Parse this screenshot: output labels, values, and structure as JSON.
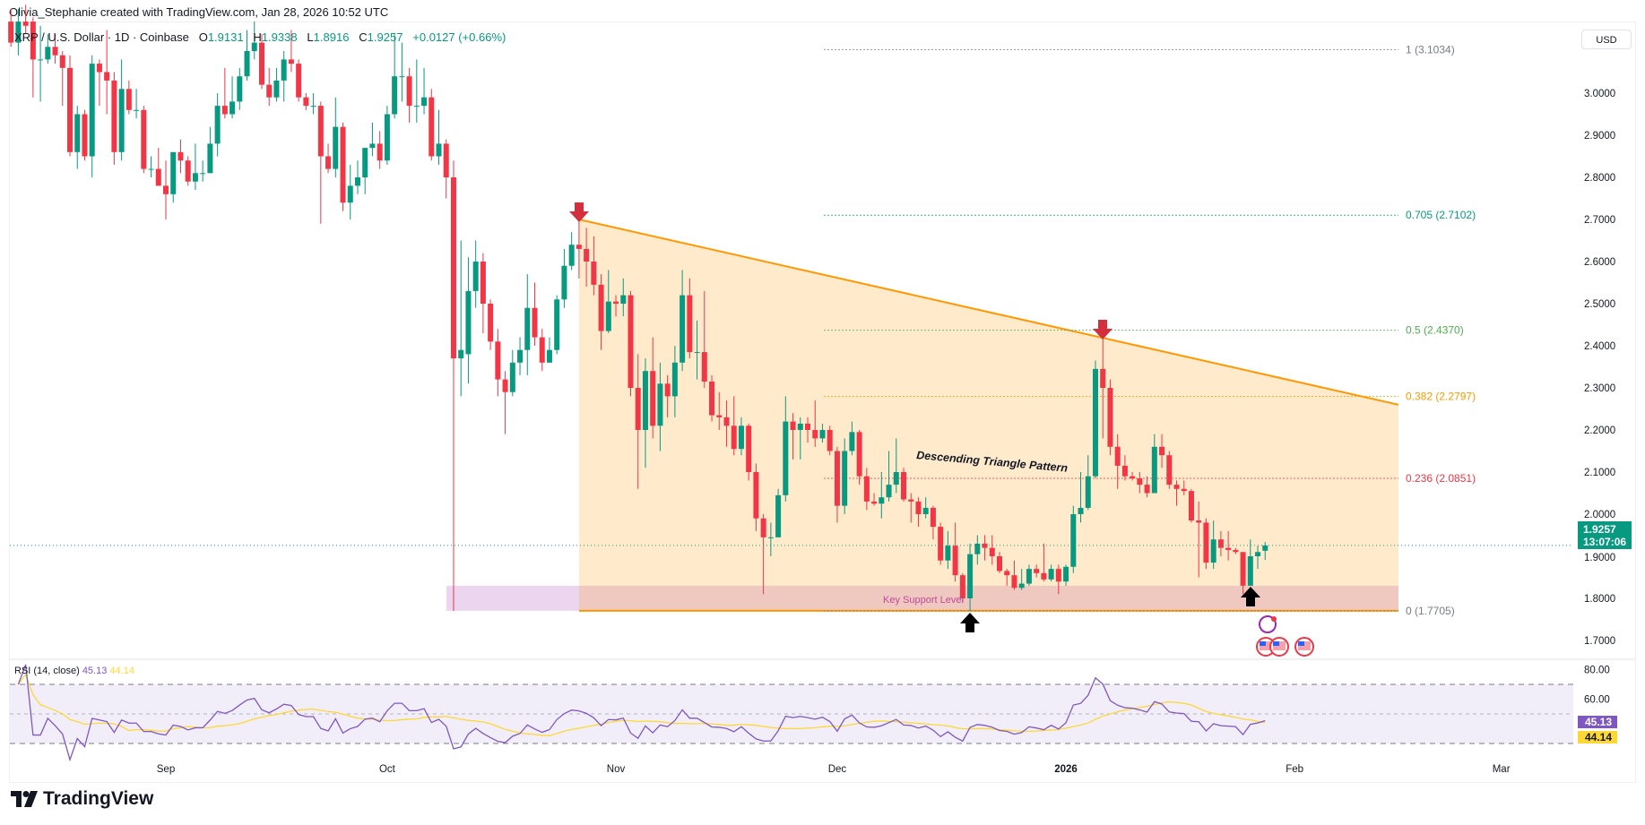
{
  "credit": "Olivia_Stephanie created with TradingView.com, Jan 28, 2026 10:52 UTC",
  "legend": {
    "symbol": "XRP / U.S. Dollar · 1D · Coinbase",
    "open_label": "O",
    "open": "1.9131",
    "high_label": "H",
    "high": "1.9338",
    "low_label": "L",
    "low": "1.8916",
    "close_label": "C",
    "close": "1.9257",
    "change": "+0.0127 (+0.66%)"
  },
  "currency_button": "USD",
  "price_tag": {
    "price": "1.9257",
    "countdown": "13:07:06"
  },
  "rsi": {
    "label": "RSI (14, close)",
    "value": "45.13",
    "ma_value": "44.14",
    "axis_labels": [
      "80.00",
      "60.00"
    ],
    "levels": [
      70,
      50,
      30
    ]
  },
  "colors": {
    "up": "#089981",
    "down": "#f23645",
    "rsi": "#7e57c2",
    "rsi_ma": "#fdd835",
    "triangle": "#ff9800",
    "support_zone": "#e1bee7",
    "accent": "#2962ff"
  },
  "annotations": {
    "pattern_label": "Descending Triangle Pattern",
    "support_label": "Key Support Level",
    "icons": [
      "red-down-arrow-icon",
      "red-down-arrow-icon",
      "black-up-arrow-icon",
      "black-up-arrow-icon",
      "ai-flash-icon",
      "us-flag-event-icon"
    ]
  },
  "branding": "TradingView",
  "chart_data": {
    "type": "candlestick",
    "interval": "1D",
    "first_date": "2025-08-11",
    "last_date": "2026-01-28",
    "y_axis_ticks": [
      "1.7000",
      "1.8000",
      "1.9000",
      "2.0000",
      "2.1000",
      "2.2000",
      "2.3000",
      "2.4000",
      "2.5000",
      "2.6000",
      "2.7000",
      "2.8000",
      "2.9000",
      "3.0000"
    ],
    "x_axis_ticks": [
      "Sep",
      "Oct",
      "Nov",
      "Dec",
      "2026",
      "Feb",
      "Mar"
    ],
    "fib_levels": [
      {
        "ratio": "1",
        "price": 3.1034,
        "label": "1 (3.1034)",
        "color": "#787b86"
      },
      {
        "ratio": "0.705",
        "price": 2.7102,
        "label": "0.705 (2.7102)",
        "color": "#089981"
      },
      {
        "ratio": "0.5",
        "price": 2.437,
        "label": "0.5 (2.4370)",
        "color": "#4caf50"
      },
      {
        "ratio": "0.382",
        "price": 2.2797,
        "label": "0.382 (2.2797)",
        "color": "#ff9800"
      },
      {
        "ratio": "0.236",
        "price": 2.0851,
        "label": "0.236 (2.0851)",
        "color": "#f23645"
      },
      {
        "ratio": "0",
        "price": 1.7705,
        "label": "0 (1.7705)",
        "color": "#787b86"
      }
    ],
    "triangle": {
      "start_date": "2025-10-27",
      "upper_start": 2.7,
      "upper_end": 2.26,
      "lower": 1.7705
    },
    "support_zone": {
      "start_date": "2025-10-10",
      "from": 1.7705,
      "to": 1.83
    },
    "candles_ohlc": [
      [
        3.17,
        3.2,
        3.11,
        3.12
      ],
      [
        3.12,
        3.2,
        3.09,
        3.17
      ],
      [
        3.17,
        3.21,
        3.14,
        3.16
      ],
      [
        3.17,
        3.18,
        2.99,
        3.08
      ],
      [
        3.08,
        3.16,
        2.98,
        3.08
      ],
      [
        3.08,
        3.14,
        3.07,
        3.11
      ],
      [
        3.11,
        3.14,
        3.07,
        3.09
      ],
      [
        3.09,
        3.1,
        2.97,
        3.06
      ],
      [
        3.06,
        3.09,
        2.85,
        2.86
      ],
      [
        2.86,
        2.97,
        2.82,
        2.95
      ],
      [
        2.95,
        2.96,
        2.84,
        2.85
      ],
      [
        2.85,
        3.09,
        2.8,
        3.07
      ],
      [
        3.07,
        3.08,
        2.97,
        3.05
      ],
      [
        3.05,
        3.15,
        2.95,
        3.03
      ],
      [
        3.03,
        3.05,
        2.83,
        2.86
      ],
      [
        2.86,
        3.08,
        2.84,
        3.01
      ],
      [
        3.01,
        3.03,
        2.95,
        2.96
      ],
      [
        2.96,
        3.01,
        2.94,
        2.96
      ],
      [
        2.96,
        2.97,
        2.81,
        2.82
      ],
      [
        2.82,
        2.85,
        2.8,
        2.82
      ],
      [
        2.82,
        2.87,
        2.78,
        2.78
      ],
      [
        2.78,
        2.84,
        2.7,
        2.76
      ],
      [
        2.76,
        2.86,
        2.74,
        2.86
      ],
      [
        2.86,
        2.89,
        2.81,
        2.84
      ],
      [
        2.84,
        2.85,
        2.78,
        2.79
      ],
      [
        2.79,
        2.88,
        2.77,
        2.81
      ],
      [
        2.81,
        2.84,
        2.79,
        2.81
      ],
      [
        2.81,
        2.92,
        2.81,
        2.88
      ],
      [
        2.88,
        3.0,
        2.85,
        2.97
      ],
      [
        2.97,
        3.06,
        2.94,
        2.95
      ],
      [
        2.95,
        3.04,
        2.94,
        2.98
      ],
      [
        2.98,
        3.06,
        2.96,
        3.04
      ],
      [
        3.04,
        3.15,
        3.03,
        3.1
      ],
      [
        3.1,
        3.17,
        3.08,
        3.12
      ],
      [
        3.12,
        3.14,
        3.01,
        3.02
      ],
      [
        3.02,
        3.06,
        2.97,
        2.99
      ],
      [
        2.99,
        3.06,
        2.98,
        3.03
      ],
      [
        3.03,
        3.1,
        2.98,
        3.08
      ],
      [
        3.08,
        3.15,
        3.05,
        3.07
      ],
      [
        3.07,
        3.08,
        2.98,
        2.99
      ],
      [
        2.99,
        3.0,
        2.96,
        2.97
      ],
      [
        2.97,
        3.0,
        2.95,
        2.97
      ],
      [
        2.97,
        2.98,
        2.69,
        2.85
      ],
      [
        2.85,
        2.88,
        2.81,
        2.82
      ],
      [
        2.82,
        2.99,
        2.8,
        2.92
      ],
      [
        2.92,
        2.93,
        2.72,
        2.74
      ],
      [
        2.74,
        2.83,
        2.7,
        2.78
      ],
      [
        2.78,
        2.84,
        2.76,
        2.8
      ],
      [
        2.8,
        2.87,
        2.76,
        2.87
      ],
      [
        2.87,
        2.93,
        2.85,
        2.88
      ],
      [
        2.88,
        2.91,
        2.82,
        2.84
      ],
      [
        2.84,
        2.97,
        2.83,
        2.95
      ],
      [
        2.95,
        3.14,
        2.94,
        3.04
      ],
      [
        3.04,
        3.12,
        2.98,
        3.04
      ],
      [
        3.04,
        3.06,
        2.93,
        2.97
      ],
      [
        2.97,
        3.08,
        2.93,
        2.97
      ],
      [
        2.97,
        3.06,
        2.95,
        2.99
      ],
      [
        2.99,
        3.01,
        2.84,
        2.85
      ],
      [
        2.85,
        2.96,
        2.83,
        2.88
      ],
      [
        2.88,
        2.89,
        2.75,
        2.8
      ],
      [
        2.8,
        2.84,
        1.77,
        2.37
      ],
      [
        2.37,
        2.65,
        2.28,
        2.39
      ],
      [
        2.38,
        2.61,
        2.31,
        2.53
      ],
      [
        2.53,
        2.65,
        2.49,
        2.6
      ],
      [
        2.6,
        2.62,
        2.43,
        2.5
      ],
      [
        2.5,
        2.51,
        2.39,
        2.41
      ],
      [
        2.41,
        2.44,
        2.28,
        2.32
      ],
      [
        2.32,
        2.34,
        2.19,
        2.29
      ],
      [
        2.29,
        2.39,
        2.28,
        2.36
      ],
      [
        2.36,
        2.42,
        2.33,
        2.39
      ],
      [
        2.39,
        2.57,
        2.33,
        2.49
      ],
      [
        2.49,
        2.55,
        2.4,
        2.42
      ],
      [
        2.42,
        2.44,
        2.34,
        2.36
      ],
      [
        2.36,
        2.42,
        2.36,
        2.39
      ],
      [
        2.39,
        2.52,
        2.38,
        2.51
      ],
      [
        2.51,
        2.63,
        2.49,
        2.59
      ],
      [
        2.59,
        2.67,
        2.58,
        2.64
      ],
      [
        2.64,
        2.7,
        2.56,
        2.63
      ],
      [
        2.63,
        2.68,
        2.54,
        2.6
      ],
      [
        2.6,
        2.66,
        2.52,
        2.545
      ],
      [
        2.545,
        2.57,
        2.39,
        2.435
      ],
      [
        2.435,
        2.58,
        2.43,
        2.505
      ],
      [
        2.505,
        2.52,
        2.47,
        2.5
      ],
      [
        2.5,
        2.56,
        2.47,
        2.52
      ],
      [
        2.52,
        2.53,
        2.28,
        2.3
      ],
      [
        2.3,
        2.38,
        2.06,
        2.2
      ],
      [
        2.2,
        2.37,
        2.11,
        2.34
      ],
      [
        2.34,
        2.42,
        2.18,
        2.21
      ],
      [
        2.21,
        2.36,
        2.15,
        2.31
      ],
      [
        2.31,
        2.33,
        2.23,
        2.28
      ],
      [
        2.28,
        2.4,
        2.23,
        2.36
      ],
      [
        2.36,
        2.58,
        2.34,
        2.52
      ],
      [
        2.52,
        2.56,
        2.37,
        2.385
      ],
      [
        2.385,
        2.46,
        2.32,
        2.385
      ],
      [
        2.385,
        2.53,
        2.3,
        2.315
      ],
      [
        2.315,
        2.33,
        2.22,
        2.235
      ],
      [
        2.235,
        2.29,
        2.2,
        2.23
      ],
      [
        2.23,
        2.27,
        2.16,
        2.21
      ],
      [
        2.21,
        2.28,
        2.14,
        2.155
      ],
      [
        2.155,
        2.23,
        2.14,
        2.21
      ],
      [
        2.21,
        2.215,
        2.08,
        2.1
      ],
      [
        2.1,
        2.12,
        1.96,
        1.99
      ],
      [
        1.99,
        2.0,
        1.81,
        1.945
      ],
      [
        1.945,
        1.98,
        1.9,
        1.945
      ],
      [
        1.945,
        2.06,
        1.945,
        2.045
      ],
      [
        2.045,
        2.28,
        2.03,
        2.22
      ],
      [
        2.22,
        2.24,
        2.13,
        2.2
      ],
      [
        2.2,
        2.23,
        2.13,
        2.215
      ],
      [
        2.215,
        2.23,
        2.17,
        2.2
      ],
      [
        2.2,
        2.27,
        2.16,
        2.18
      ],
      [
        2.18,
        2.215,
        2.17,
        2.2
      ],
      [
        2.2,
        2.21,
        2.14,
        2.15
      ],
      [
        2.15,
        2.16,
        1.98,
        2.02
      ],
      [
        2.02,
        2.18,
        2.0,
        2.15
      ],
      [
        2.15,
        2.22,
        2.14,
        2.195
      ],
      [
        2.195,
        2.2,
        2.07,
        2.09
      ],
      [
        2.09,
        2.11,
        2.01,
        2.03
      ],
      [
        2.03,
        2.05,
        2.02,
        2.025
      ],
      [
        2.025,
        2.1,
        1.99,
        2.04
      ],
      [
        2.04,
        2.15,
        2.03,
        2.07
      ],
      [
        2.07,
        2.18,
        2.05,
        2.1
      ],
      [
        2.1,
        2.11,
        2.03,
        2.035
      ],
      [
        2.035,
        2.05,
        1.98,
        2.03
      ],
      [
        2.03,
        2.04,
        1.97,
        2.0
      ],
      [
        2.0,
        2.04,
        1.99,
        2.015
      ],
      [
        2.015,
        2.02,
        1.94,
        1.97
      ],
      [
        1.97,
        1.98,
        1.88,
        1.89
      ],
      [
        1.89,
        1.96,
        1.87,
        1.925
      ],
      [
        1.925,
        1.98,
        1.84,
        1.855
      ],
      [
        1.855,
        1.86,
        1.79,
        1.8
      ],
      [
        1.8,
        1.93,
        1.77,
        1.905
      ],
      [
        1.905,
        1.95,
        1.88,
        1.93
      ],
      [
        1.93,
        1.95,
        1.89,
        1.92
      ],
      [
        1.92,
        1.95,
        1.88,
        1.9
      ],
      [
        1.9,
        1.91,
        1.86,
        1.865
      ],
      [
        1.865,
        1.87,
        1.83,
        1.855
      ],
      [
        1.855,
        1.89,
        1.82,
        1.825
      ],
      [
        1.825,
        1.87,
        1.82,
        1.835
      ],
      [
        1.835,
        1.88,
        1.83,
        1.87
      ],
      [
        1.87,
        1.88,
        1.85,
        1.86
      ],
      [
        1.86,
        1.93,
        1.84,
        1.845
      ],
      [
        1.845,
        1.88,
        1.84,
        1.87
      ],
      [
        1.87,
        1.88,
        1.81,
        1.84
      ],
      [
        1.84,
        1.88,
        1.83,
        1.875
      ],
      [
        1.875,
        2.02,
        1.86,
        2.0
      ],
      [
        2.0,
        2.1,
        1.98,
        2.015
      ],
      [
        2.015,
        2.14,
        2.01,
        2.09
      ],
      [
        2.09,
        2.365,
        2.085,
        2.345
      ],
      [
        2.345,
        2.42,
        2.18,
        2.3
      ],
      [
        2.3,
        2.32,
        2.14,
        2.16
      ],
      [
        2.16,
        2.19,
        2.06,
        2.115
      ],
      [
        2.115,
        2.14,
        2.08,
        2.09
      ],
      [
        2.09,
        2.1,
        2.08,
        2.085
      ],
      [
        2.085,
        2.1,
        2.05,
        2.07
      ],
      [
        2.07,
        2.09,
        2.04,
        2.05
      ],
      [
        2.05,
        2.19,
        2.05,
        2.16
      ],
      [
        2.16,
        2.19,
        2.11,
        2.14
      ],
      [
        2.14,
        2.15,
        2.06,
        2.07
      ],
      [
        2.07,
        2.08,
        2.02,
        2.06
      ],
      [
        2.06,
        2.08,
        2.045,
        2.055
      ],
      [
        2.055,
        2.06,
        1.98,
        1.985
      ],
      [
        1.985,
        2.03,
        1.85,
        1.98
      ],
      [
        1.98,
        1.99,
        1.87,
        1.885
      ],
      [
        1.885,
        1.985,
        1.87,
        1.94
      ],
      [
        1.94,
        1.96,
        1.9,
        1.92
      ],
      [
        1.92,
        1.96,
        1.89,
        1.915
      ],
      [
        1.915,
        1.92,
        1.905,
        1.91
      ],
      [
        1.91,
        1.91,
        1.81,
        1.83
      ],
      [
        1.83,
        1.94,
        1.83,
        1.9
      ],
      [
        1.9,
        1.925,
        1.87,
        1.91
      ],
      [
        1.9131,
        1.9338,
        1.8916,
        1.9257
      ]
    ]
  }
}
